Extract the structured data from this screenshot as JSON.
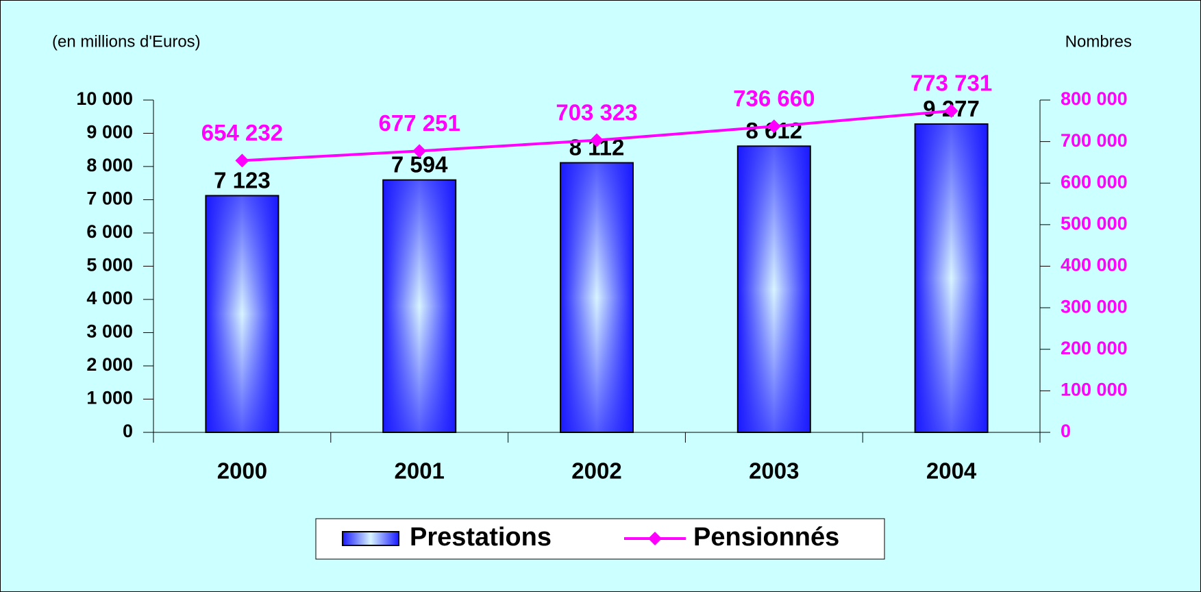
{
  "chart_data": {
    "type": "bar",
    "y_label": "(en millions d'Euros)",
    "y2_label": "Nombres",
    "categories": [
      "2000",
      "2001",
      "2002",
      "2003",
      "2004"
    ],
    "series": [
      {
        "name": "Prestations",
        "type": "bar",
        "color": "#1a1aff",
        "values": [
          7123,
          7594,
          8112,
          8612,
          9277
        ],
        "value_labels": [
          "7 123",
          "7 594",
          "8 112",
          "8 612",
          "9 277"
        ]
      },
      {
        "name": "Pensionnés",
        "type": "line",
        "axis": "y2",
        "color": "#ff00ff",
        "values": [
          654232,
          677251,
          703323,
          736660,
          773731
        ],
        "value_labels": [
          "654 232",
          "677 251",
          "703 323",
          "736 660",
          "773 731"
        ]
      }
    ],
    "ylim": [
      0,
      10000
    ],
    "yticks": [
      0,
      {
        "value": 1000,
        "label": "1 000"
      },
      {
        "value": 2000,
        "label": "2 000"
      },
      {
        "value": 3000,
        "label": "3 000"
      },
      {
        "value": 4000,
        "label": "4 000"
      },
      {
        "value": 5000,
        "label": "5 000"
      },
      {
        "value": 6000,
        "label": "6 000"
      },
      {
        "value": 7000,
        "label": "7 000"
      },
      {
        "value": 8000,
        "label": "8 000"
      },
      {
        "value": 9000,
        "label": "9 000"
      },
      {
        "value": 10000,
        "label": "10 000"
      }
    ],
    "y2lim": [
      0,
      800000
    ],
    "y2ticks": [
      0,
      {
        "value": 100000,
        "label": "100 000"
      },
      {
        "value": 200000,
        "label": "200 000"
      },
      {
        "value": 300000,
        "label": "300 000"
      },
      {
        "value": 400000,
        "label": "400 000"
      },
      {
        "value": 500000,
        "label": "500 000"
      },
      {
        "value": 600000,
        "label": "600 000"
      },
      {
        "value": 700000,
        "label": "700 000"
      },
      {
        "value": 800000,
        "label": "800 000"
      }
    ],
    "y2color": "#ff00ff",
    "background": "#ccffff"
  }
}
